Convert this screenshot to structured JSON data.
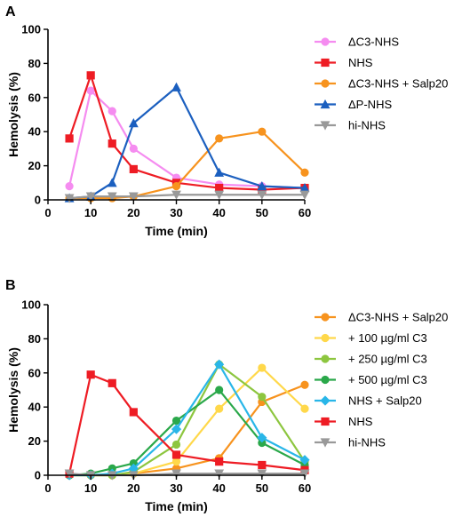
{
  "chart_data": [
    {
      "panel": "A",
      "type": "line",
      "xlabel": "Time (min)",
      "ylabel": "Hemolysis (%)",
      "xlim": [
        0,
        60
      ],
      "ylim": [
        0,
        100
      ],
      "xticks": [
        0,
        10,
        20,
        30,
        40,
        50,
        60
      ],
      "yticks": [
        0,
        20,
        40,
        60,
        80,
        100
      ],
      "legend_position": "right",
      "series": [
        {
          "name": "ΔC3-NHS",
          "color": "#f58cf0",
          "marker": "circle",
          "x": [
            5,
            10,
            15,
            20,
            30,
            40,
            50,
            60
          ],
          "y": [
            8,
            64,
            52,
            30,
            13,
            9,
            8,
            7
          ]
        },
        {
          "name": "NHS",
          "color": "#ee1c24",
          "marker": "square",
          "x": [
            5,
            10,
            15,
            20,
            30,
            40,
            50,
            60
          ],
          "y": [
            36,
            73,
            33,
            18,
            10,
            7,
            6,
            7
          ]
        },
        {
          "name": "ΔC3-NHS + Salp20",
          "color": "#f7931e",
          "marker": "circle",
          "x": [
            5,
            10,
            15,
            20,
            30,
            40,
            50,
            60
          ],
          "y": [
            1,
            1,
            1,
            2,
            8,
            36,
            40,
            16
          ]
        },
        {
          "name": "ΔP-NHS",
          "color": "#1b5fbf",
          "marker": "triangle-up",
          "x": [
            5,
            10,
            15,
            20,
            30,
            40,
            50,
            60
          ],
          "y": [
            1,
            2,
            10,
            45,
            66,
            16,
            8,
            7
          ]
        },
        {
          "name": "hi-NHS",
          "color": "#999999",
          "marker": "triangle-down",
          "x": [
            5,
            10,
            15,
            20,
            30,
            40,
            50,
            60
          ],
          "y": [
            1,
            2,
            2,
            2,
            3,
            3,
            3,
            3
          ]
        }
      ]
    },
    {
      "panel": "B",
      "type": "line",
      "xlabel": "Time (min)",
      "ylabel": "Hemolysis (%)",
      "xlim": [
        0,
        60
      ],
      "ylim": [
        0,
        100
      ],
      "xticks": [
        0,
        10,
        20,
        30,
        40,
        50,
        60
      ],
      "yticks": [
        0,
        20,
        40,
        60,
        80,
        100
      ],
      "legend_position": "right",
      "series": [
        {
          "name": "ΔC3-NHS + Salp20",
          "color": "#f7931e",
          "marker": "circle",
          "x": [
            5,
            10,
            15,
            20,
            30,
            40,
            50,
            60
          ],
          "y": [
            0,
            0,
            0,
            1,
            4,
            10,
            43,
            53
          ]
        },
        {
          "name": "+ 100 µg/ml C3",
          "color": "#ffd84a",
          "marker": "circle",
          "x": [
            5,
            10,
            15,
            20,
            30,
            40,
            50,
            60
          ],
          "y": [
            0,
            0,
            0,
            1,
            8,
            39,
            63,
            39
          ]
        },
        {
          "name": "+ 250 µg/ml C3",
          "color": "#8dc63f",
          "marker": "circle",
          "x": [
            5,
            10,
            15,
            20,
            30,
            40,
            50,
            60
          ],
          "y": [
            0,
            0,
            0,
            2,
            18,
            65,
            46,
            8
          ]
        },
        {
          "name": "+ 500 µg/ml C3",
          "color": "#2aa84a",
          "marker": "circle",
          "x": [
            5,
            10,
            15,
            20,
            30,
            40,
            50,
            60
          ],
          "y": [
            0,
            1,
            4,
            7,
            32,
            50,
            19,
            6
          ]
        },
        {
          "name": "NHS + Salp20",
          "color": "#29b6e8",
          "marker": "diamond",
          "x": [
            5,
            10,
            15,
            20,
            30,
            40,
            50,
            60
          ],
          "y": [
            0,
            0,
            1,
            4,
            27,
            65,
            22,
            9
          ]
        },
        {
          "name": "NHS",
          "color": "#ee1c24",
          "marker": "square",
          "x": [
            5,
            10,
            15,
            20,
            30,
            40,
            50,
            60
          ],
          "y": [
            1,
            59,
            54,
            37,
            12,
            8,
            6,
            3
          ]
        },
        {
          "name": "hi-NHS",
          "color": "#999999",
          "marker": "triangle-down",
          "x": [
            5,
            10,
            15,
            20,
            30,
            40,
            50,
            60
          ],
          "y": [
            1,
            0,
            0,
            0,
            1,
            1,
            1,
            1
          ]
        }
      ]
    }
  ]
}
